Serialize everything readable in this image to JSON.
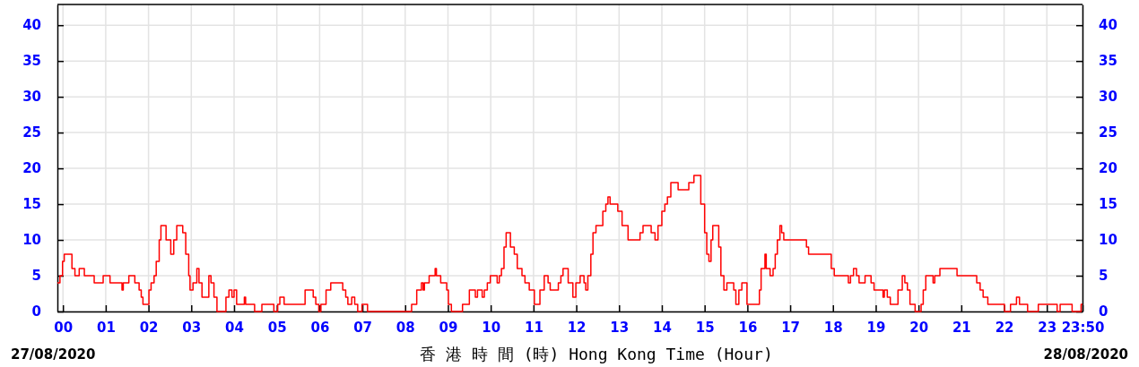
{
  "chart_data": {
    "type": "step",
    "xlabel": "香 港 時 間 (時) Hong Kong Time (Hour)",
    "annotations": [
      "27/08/2020",
      "28/08/2020"
    ],
    "x": [
      -0.13,
      -0.07,
      -0.01,
      0.03,
      0.21,
      0.28,
      0.38,
      0.5,
      0.73,
      0.94,
      1.1,
      1.38,
      1.41,
      1.54,
      1.68,
      1.78,
      1.83,
      1.87,
      2.01,
      2.06,
      2.13,
      2.18,
      2.25,
      2.29,
      2.41,
      2.52,
      2.59,
      2.66,
      2.8,
      2.87,
      2.94,
      2.97,
      3.04,
      3.13,
      3.18,
      3.25,
      3.41,
      3.46,
      3.53,
      3.6,
      3.81,
      3.88,
      3.95,
      4.0,
      4.06,
      4.24,
      4.27,
      4.48,
      4.65,
      4.93,
      5.02,
      5.07,
      5.17,
      5.66,
      5.85,
      5.91,
      5.98,
      6.03,
      6.15,
      6.26,
      6.54,
      6.61,
      6.66,
      6.75,
      6.82,
      6.89,
      6.99,
      7.12,
      8.15,
      8.27,
      8.38,
      8.42,
      8.45,
      8.56,
      8.7,
      8.73,
      8.83,
      8.97,
      9.01,
      9.08,
      9.34,
      9.5,
      9.64,
      9.69,
      9.8,
      9.85,
      9.92,
      9.99,
      10.15,
      10.2,
      10.25,
      10.31,
      10.36,
      10.46,
      10.55,
      10.62,
      10.73,
      10.8,
      10.9,
      11.02,
      11.15,
      11.25,
      11.34,
      11.39,
      11.58,
      11.64,
      11.69,
      11.81,
      11.92,
      11.99,
      12.09,
      12.18,
      12.22,
      12.27,
      12.34,
      12.39,
      12.46,
      12.62,
      12.69,
      12.74,
      12.79,
      12.97,
      13.07,
      13.21,
      13.49,
      13.56,
      13.75,
      13.84,
      13.91,
      14.0,
      14.07,
      14.13,
      14.21,
      14.38,
      14.63,
      14.75,
      14.91,
      15.0,
      15.05,
      15.1,
      15.15,
      15.19,
      15.33,
      15.38,
      15.45,
      15.52,
      15.68,
      15.73,
      15.8,
      15.87,
      15.99,
      16.28,
      16.32,
      16.41,
      16.44,
      16.53,
      16.6,
      16.65,
      16.7,
      16.76,
      16.8,
      16.85,
      17.38,
      17.43,
      17.96,
      18.03,
      18.36,
      18.41,
      18.48,
      18.55,
      18.61,
      18.75,
      18.89,
      18.96,
      19.17,
      19.2,
      19.27,
      19.34,
      19.52,
      19.62,
      19.68,
      19.74,
      19.8,
      19.92,
      20.06,
      20.11,
      20.17,
      20.34,
      20.38,
      20.5,
      20.9,
      21.36,
      21.44,
      21.51,
      21.62,
      22.01,
      22.15,
      22.29,
      22.36,
      22.55,
      22.8,
      23.24,
      23.31,
      23.59,
      23.8,
      23.833
    ],
    "series": [
      {
        "color": "#ff0000",
        "values": [
          4,
          5,
          7,
          8,
          6,
          5,
          6,
          5,
          4,
          5,
          4,
          3,
          4,
          5,
          4,
          3,
          2,
          1,
          3,
          4,
          5,
          7,
          10,
          12,
          10,
          8,
          10,
          12,
          11,
          8,
          5,
          3,
          4,
          6,
          4,
          2,
          5,
          4,
          2,
          0,
          2,
          3,
          2,
          3,
          1,
          2,
          1,
          0,
          1,
          0,
          1,
          2,
          1,
          3,
          2,
          1,
          0,
          1,
          3,
          4,
          3,
          2,
          1,
          2,
          1,
          0,
          1,
          0,
          1,
          3,
          4,
          3,
          4,
          5,
          6,
          5,
          4,
          3,
          1,
          0,
          1,
          3,
          2,
          3,
          2,
          3,
          4,
          5,
          4,
          5,
          6,
          9,
          11,
          9,
          8,
          6,
          5,
          4,
          3,
          1,
          3,
          5,
          4,
          3,
          4,
          5,
          6,
          4,
          2,
          4,
          5,
          4,
          3,
          5,
          8,
          11,
          12,
          14,
          15,
          16,
          15,
          14,
          12,
          10,
          11,
          12,
          11,
          10,
          12,
          14,
          15,
          16,
          18,
          17,
          18,
          19,
          15,
          11,
          8,
          7,
          10,
          12,
          9,
          5,
          3,
          4,
          3,
          1,
          3,
          4,
          1,
          3,
          6,
          8,
          6,
          5,
          6,
          8,
          10,
          12,
          11,
          10,
          9,
          8,
          6,
          5,
          4,
          5,
          6,
          5,
          4,
          5,
          4,
          3,
          2,
          3,
          2,
          1,
          3,
          5,
          4,
          3,
          1,
          0,
          1,
          3,
          5,
          4,
          5,
          6,
          5,
          4,
          3,
          2,
          1,
          0,
          1,
          2,
          1,
          0,
          1,
          0,
          1,
          0,
          1,
          1
        ]
      }
    ],
    "xlim": [
      -0.13,
      23.833
    ],
    "xticks": [
      {
        "value": 0,
        "label": "00"
      },
      {
        "value": 1,
        "label": "01"
      },
      {
        "value": 2,
        "label": "02"
      },
      {
        "value": 3,
        "label": "03"
      },
      {
        "value": 4,
        "label": "04"
      },
      {
        "value": 5,
        "label": "05"
      },
      {
        "value": 6,
        "label": "06"
      },
      {
        "value": 7,
        "label": "07"
      },
      {
        "value": 8,
        "label": "08"
      },
      {
        "value": 9,
        "label": "09"
      },
      10,
      11,
      12,
      13,
      14,
      15,
      16,
      17,
      18,
      19,
      20,
      21,
      22,
      23,
      {
        "value": 23.833,
        "label": "23:50"
      }
    ],
    "ylim": [
      0,
      42.9
    ],
    "yticks": [
      0,
      5,
      10,
      15,
      20,
      25,
      30,
      35,
      40
    ],
    "y2lim": [
      0,
      42.9
    ],
    "y2ticks": [
      0,
      5,
      10,
      15,
      20,
      25,
      30,
      35,
      40
    ],
    "grid": true,
    "marker": "none",
    "line_style": "solid"
  }
}
